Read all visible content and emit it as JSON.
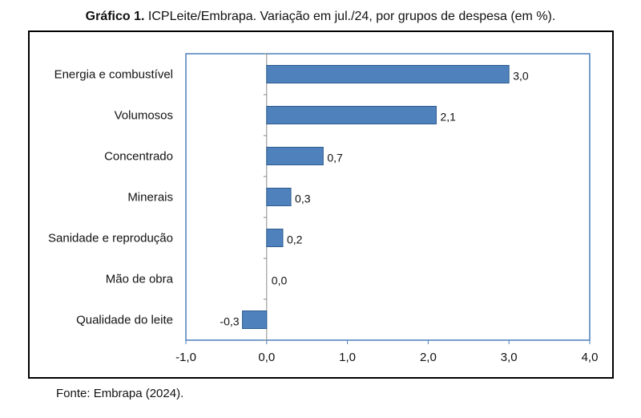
{
  "header": {
    "title_bold": "Gráfico 1.",
    "title_rest": "ICPLeite/Embrapa. Variação em jul./24, por grupos de despesa (em %)."
  },
  "footer": {
    "source": "Fonte: Embrapa (2024)."
  },
  "colors": {
    "bar": "#4f81bd",
    "bar_stroke": "#2e5c8e",
    "plot_border": "#4a7eba"
  },
  "chart_data": {
    "type": "bar",
    "orientation": "horizontal",
    "title": "ICPLeite/Embrapa. Variação em jul./24, por grupos de despesa (em %).",
    "categories": [
      "Energia e combustível",
      "Volumosos",
      "Concentrado",
      "Minerais",
      "Sanidade e reprodução",
      "Mão de obra",
      "Qualidade do leite"
    ],
    "values": [
      3.0,
      2.1,
      0.7,
      0.3,
      0.2,
      0.0,
      -0.3
    ],
    "value_labels": [
      "3,0",
      "2,1",
      "0,7",
      "0,3",
      "0,2",
      "0,0",
      "-0,3"
    ],
    "xlim": [
      -1.0,
      4.0
    ],
    "xticks": [
      -1.0,
      0.0,
      1.0,
      2.0,
      3.0,
      4.0
    ],
    "xtick_labels": [
      "-1,0",
      "0,0",
      "1,0",
      "2,0",
      "3,0",
      "4,0"
    ],
    "xlabel": "",
    "ylabel": "",
    "grid": false,
    "legend": "none"
  }
}
